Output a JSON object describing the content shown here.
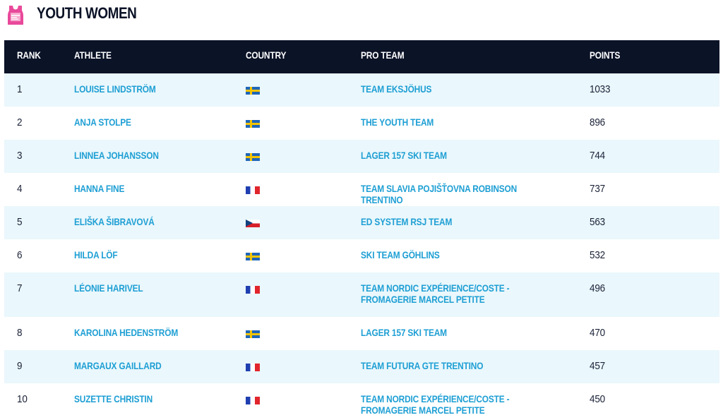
{
  "header": {
    "icon": "youth-bib-icon",
    "title": "YOUTH WOMEN"
  },
  "colors": {
    "header_bg": "#0b1327",
    "accent_link": "#1e9fd4",
    "row_alt": "#eaf7fc",
    "bib_pink": "#e9499a"
  },
  "table": {
    "columns": {
      "rank": "RANK",
      "athlete": "ATHLETE",
      "country": "COUNTRY",
      "team": "PRO TEAM",
      "points": "POINTS"
    },
    "rows": [
      {
        "rank": "1",
        "athlete": "LOUISE LINDSTRÖM",
        "country": "swedish-flag-icon",
        "team": "TEAM EKSJÖHUS",
        "points": "1033"
      },
      {
        "rank": "2",
        "athlete": "ANJA STOLPE",
        "country": "swedish-flag-icon",
        "team": "THE YOUTH TEAM",
        "points": "896"
      },
      {
        "rank": "3",
        "athlete": "LINNEA JOHANSSON",
        "country": "swedish-flag-icon",
        "team": "LAGER 157 SKI TEAM",
        "points": "744"
      },
      {
        "rank": "4",
        "athlete": "HANNA FINE",
        "country": "french-flag-icon",
        "team": "TEAM SLAVIA POJIŠŤOVNA ROBINSON TRENTINO",
        "points": "737"
      },
      {
        "rank": "5",
        "athlete": "ELIŠKA ŠIBRAVOVÁ",
        "country": "czech-flag-icon",
        "team": "ED SYSTEM RSJ TEAM",
        "points": "563"
      },
      {
        "rank": "6",
        "athlete": "HILDA LÖF",
        "country": "swedish-flag-icon",
        "team": "SKI TEAM GÖHLINS",
        "points": "532"
      },
      {
        "rank": "7",
        "athlete": "LÉONIE HARIVEL",
        "country": "french-flag-icon",
        "team": "TEAM NORDIC EXPÉRIENCE/COSTE - FROMAGERIE MARCEL PETITE",
        "points": "496"
      },
      {
        "rank": "8",
        "athlete": "KAROLINA HEDENSTRÖM",
        "country": "swedish-flag-icon",
        "team": "LAGER 157 SKI TEAM",
        "points": "470"
      },
      {
        "rank": "9",
        "athlete": "MARGAUX GAILLARD",
        "country": "french-flag-icon",
        "team": "TEAM FUTURA GTE TRENTINO",
        "points": "457"
      },
      {
        "rank": "10",
        "athlete": "SUZETTE CHRISTIN",
        "country": "french-flag-icon",
        "team": "TEAM NORDIC EXPÉRIENCE/COSTE - FROMAGERIE MARCEL PETITE",
        "points": "450"
      }
    ]
  }
}
